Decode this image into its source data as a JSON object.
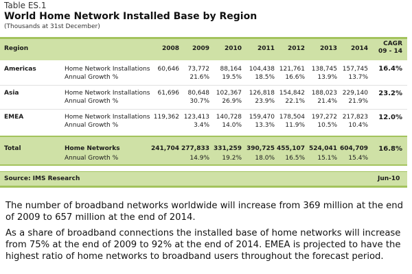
{
  "table": {
    "label": "Table ES.1",
    "title": "World Home Network Installed Base by Region",
    "subtitle": "(Thousands at 31st December)",
    "headers": {
      "region": "Region",
      "years": [
        "2008",
        "2009",
        "2010",
        "2011",
        "2012",
        "2013",
        "2014"
      ],
      "cagr_line1": "CAGR",
      "cagr_line2": "09 - 14"
    },
    "rows": [
      {
        "region": "Americas",
        "metric1": "Home Network Installations",
        "values1": [
          "60,646",
          "73,772",
          "88,164",
          "104,438",
          "121,761",
          "138,745",
          "157,745"
        ],
        "metric2": "Annual Growth %",
        "values2": [
          "",
          "21.6%",
          "19.5%",
          "18.5%",
          "16.6%",
          "13.9%",
          "13.7%"
        ],
        "cagr": "16.4%"
      },
      {
        "region": "Asia",
        "metric1": "Home Network Installations",
        "values1": [
          "61,696",
          "80,648",
          "102,367",
          "126,818",
          "154,842",
          "188,023",
          "229,140"
        ],
        "metric2": "Annual Growth %",
        "values2": [
          "",
          "30.7%",
          "26.9%",
          "23.9%",
          "22.1%",
          "21.4%",
          "21.9%"
        ],
        "cagr": "23.2%"
      },
      {
        "region": "EMEA",
        "metric1": "Home Network Installations",
        "values1": [
          "119,362",
          "123,413",
          "140,728",
          "159,470",
          "178,504",
          "197,272",
          "217,823"
        ],
        "metric2": "Annual Growth %",
        "values2": [
          "",
          "3.4%",
          "14.0%",
          "13.3%",
          "11.9%",
          "10.5%",
          "10.4%"
        ],
        "cagr": "12.0%"
      }
    ],
    "total": {
      "region": "Total",
      "metric1": "Home Networks",
      "values1": [
        "241,704",
        "277,833",
        "331,259",
        "390,725",
        "455,107",
        "524,041",
        "604,709"
      ],
      "metric2": "Annual Growth %",
      "values2": [
        "",
        "14.9%",
        "19.2%",
        "18.0%",
        "16.5%",
        "15.1%",
        "15.4%"
      ],
      "cagr": "16.8%"
    },
    "source": "Source: IMS Research",
    "date": "Jun-10"
  },
  "paragraphs": [
    "The number of broadband networks worldwide will increase from 369 million at the end of 2009 to 657 million at the end of 2014.",
    "As a share of broadband connections the installed base of home networks will increase from 75% at the end of 2009 to 92% at the end of 2014. EMEA is projected to have the highest ratio of home networks to broadband users throughout the forecast period."
  ]
}
